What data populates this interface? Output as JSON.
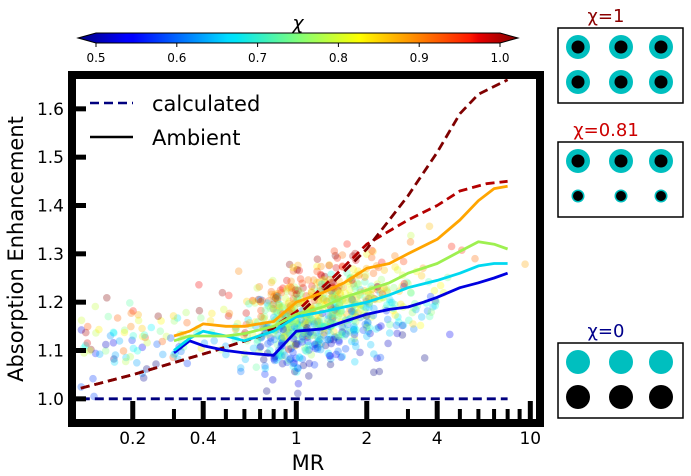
{
  "chart_data": [
    {
      "type": "scatter",
      "xlabel": "MR",
      "ylabel": "Absorption Enhancement",
      "xscale": "log",
      "xlim": [
        0.11,
        11
      ],
      "ylim": [
        0.95,
        1.67
      ],
      "xticks": [
        "0.2",
        "0.4",
        "1",
        "2",
        "4",
        "10"
      ],
      "xtick_values": [
        0.2,
        0.4,
        1,
        2,
        4,
        10
      ],
      "yticks": [
        "1.0",
        "1.1",
        "1.2",
        "1.3",
        "1.4",
        "1.5",
        "1.6"
      ],
      "ytick_values": [
        1.0,
        1.1,
        1.2,
        1.3,
        1.4,
        1.5,
        1.6
      ],
      "grid": false,
      "legend": {
        "position": "top-left",
        "entries": [
          {
            "label": "calculated",
            "style": "dashed",
            "color": "#00007f"
          },
          {
            "label": "Ambient",
            "style": "solid",
            "color": "#000000"
          }
        ]
      },
      "colorbar": {
        "label": "χ",
        "position": "top",
        "range": [
          0.5,
          1.0
        ],
        "ticks": [
          "0.5",
          "0.6",
          "0.7",
          "0.8",
          "0.9",
          "1.0"
        ],
        "tick_values": [
          0.5,
          0.6,
          0.7,
          0.8,
          0.9,
          1.0
        ],
        "colormap": "jet"
      },
      "series": [
        {
          "style": "dashed",
          "chi": 0.0,
          "color": "#00007f",
          "x": [
            0.12,
            0.3,
            1.0,
            3.0,
            8.0
          ],
          "y": [
            1.0,
            1.0,
            1.0,
            1.0,
            1.0
          ]
        },
        {
          "style": "dashed",
          "chi": 0.81,
          "color": "#b40000",
          "x": [
            0.12,
            0.2,
            0.3,
            0.45,
            0.7,
            1.0,
            1.5,
            2.0,
            3.0,
            4.0,
            5.0,
            6.5,
            8.0
          ],
          "y": [
            1.022,
            1.05,
            1.075,
            1.1,
            1.13,
            1.18,
            1.26,
            1.32,
            1.37,
            1.4,
            1.43,
            1.445,
            1.45
          ]
        },
        {
          "style": "dashed",
          "chi": 1.0,
          "color": "#7f0000",
          "x": [
            0.12,
            0.2,
            0.3,
            0.45,
            0.7,
            1.0,
            1.5,
            2.0,
            3.0,
            4.0,
            5.0,
            6.0,
            8.0
          ],
          "y": [
            1.022,
            1.05,
            1.075,
            1.1,
            1.13,
            1.17,
            1.25,
            1.31,
            1.42,
            1.51,
            1.59,
            1.63,
            1.66
          ]
        },
        {
          "style": "solid",
          "color": "#0000e0",
          "x": [
            0.3,
            0.35,
            0.4,
            0.5,
            0.6,
            0.8,
            1.0,
            1.3,
            1.6,
            2.0,
            2.5,
            3.0,
            3.5,
            4.0,
            5.0,
            6.0,
            7.0,
            8.0
          ],
          "y": [
            1.095,
            1.12,
            1.11,
            1.1,
            1.095,
            1.09,
            1.14,
            1.145,
            1.16,
            1.175,
            1.185,
            1.19,
            1.2,
            1.21,
            1.23,
            1.24,
            1.25,
            1.26
          ]
        },
        {
          "style": "solid",
          "color": "#00d8f0",
          "x": [
            0.3,
            0.35,
            0.4,
            0.5,
            0.6,
            0.8,
            1.0,
            1.3,
            1.6,
            2.0,
            2.5,
            3.0,
            4.0,
            5.0,
            6.0,
            7.0,
            8.0
          ],
          "y": [
            1.1,
            1.125,
            1.14,
            1.13,
            1.12,
            1.14,
            1.17,
            1.18,
            1.19,
            1.2,
            1.215,
            1.23,
            1.245,
            1.26,
            1.275,
            1.28,
            1.28
          ]
        },
        {
          "style": "solid",
          "color": "#9ef050",
          "x": [
            0.3,
            0.35,
            0.4,
            0.5,
            0.6,
            0.8,
            1.0,
            1.3,
            1.6,
            2.0,
            2.5,
            3.0,
            4.0,
            5.0,
            6.0,
            7.0,
            8.0
          ],
          "y": [
            1.12,
            1.13,
            1.13,
            1.13,
            1.135,
            1.15,
            1.175,
            1.19,
            1.21,
            1.225,
            1.24,
            1.26,
            1.28,
            1.305,
            1.325,
            1.32,
            1.31
          ]
        },
        {
          "style": "solid",
          "color": "#ffa500",
          "x": [
            0.3,
            0.35,
            0.4,
            0.5,
            0.6,
            0.8,
            1.0,
            1.3,
            1.6,
            2.0,
            2.5,
            3.0,
            4.0,
            5.0,
            6.0,
            7.0,
            8.0
          ],
          "y": [
            1.13,
            1.14,
            1.155,
            1.15,
            1.15,
            1.16,
            1.2,
            1.22,
            1.24,
            1.27,
            1.28,
            1.3,
            1.33,
            1.37,
            1.41,
            1.435,
            1.44
          ]
        }
      ],
      "scatter": {
        "note_free": true,
        "count": 900,
        "x_range": [
          0.12,
          9.5
        ],
        "y_center_range": [
          1.1,
          1.3
        ],
        "alpha": 0.3
      }
    }
  ],
  "schematics": [
    {
      "label": "χ=1",
      "label_color": "#8b0000",
      "rows": [
        [
          "ring",
          "ring",
          "ring"
        ],
        [
          "ring",
          "ring",
          "ring"
        ]
      ]
    },
    {
      "label": "χ=0.81",
      "label_color": "#cc0000",
      "rows": [
        [
          "ring",
          "ring",
          "ring"
        ],
        [
          "small",
          "small",
          "small"
        ]
      ]
    },
    {
      "label": "χ=0",
      "label_color": "#00008b",
      "rows": [
        [
          "cyan",
          "cyan",
          "cyan"
        ],
        [
          "black",
          "black",
          "black"
        ]
      ]
    }
  ],
  "colors": {
    "frame": "#000000",
    "shell": "#00bfbf",
    "core": "#000000"
  }
}
